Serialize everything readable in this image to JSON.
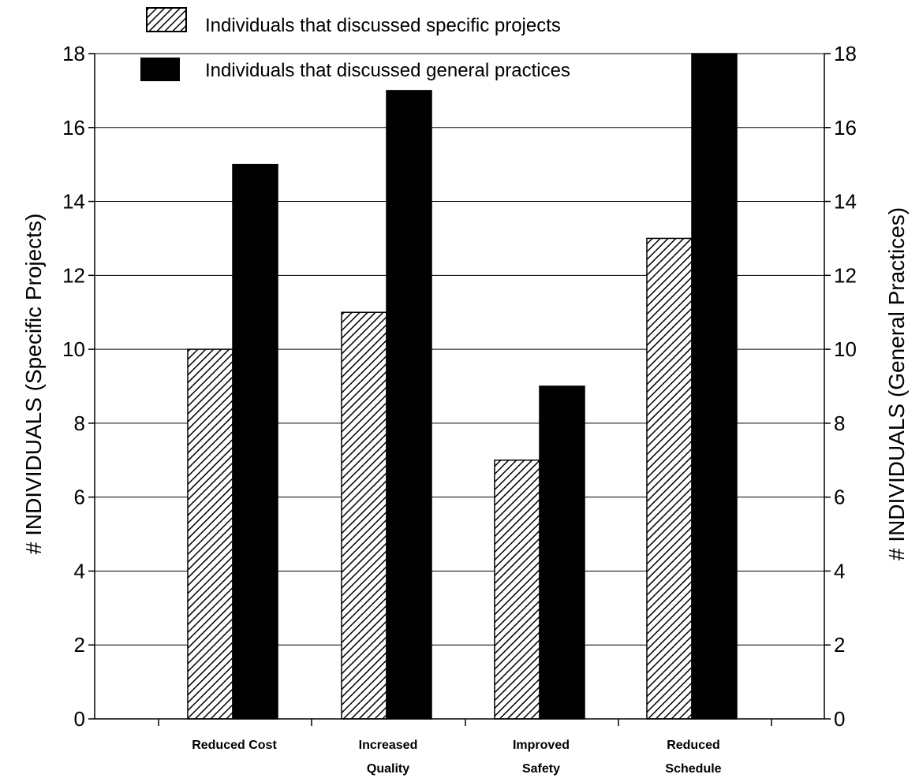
{
  "chart_data": {
    "type": "bar",
    "categories": [
      [
        "Reduced Cost"
      ],
      [
        "Increased",
        "Quality"
      ],
      [
        "Improved",
        "Safety"
      ],
      [
        "Reduced",
        "Schedule"
      ]
    ],
    "series": [
      {
        "name": "Individuals that discussed specific projects",
        "values": [
          10,
          11,
          7,
          13
        ],
        "pattern": "hatched"
      },
      {
        "name": "Individuals that discussed general practices",
        "values": [
          15,
          17,
          9,
          18
        ],
        "pattern": "solid"
      }
    ],
    "ylabel_left": "# INDIVIDUALS  (Specific Projects)",
    "ylabel_right": "# INDIVIDUALS  (General Practices)",
    "ylim": [
      0,
      18
    ],
    "yticks": [
      "0",
      "2",
      "4",
      "6",
      "8",
      "10",
      "12",
      "14",
      "16",
      "18"
    ],
    "grid": true,
    "legend_position": "top",
    "colors": {
      "bar": "#000000",
      "background": "#ffffff"
    }
  }
}
